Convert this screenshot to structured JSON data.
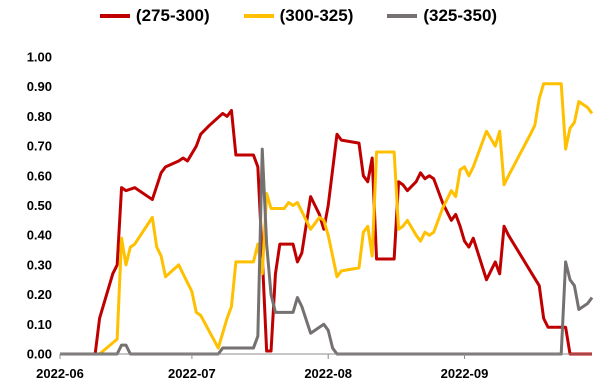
{
  "chart_data": {
    "type": "line",
    "title": "",
    "xlabel": "",
    "ylabel": "",
    "ylim": [
      0,
      1
    ],
    "xlim": [
      "2022-06-01",
      "2022-09-30"
    ],
    "y_ticks": [
      "0.00",
      "0.10",
      "0.20",
      "0.30",
      "0.40",
      "0.50",
      "0.60",
      "0.70",
      "0.80",
      "0.90",
      "1.00"
    ],
    "x_ticks": [
      {
        "date": "2022-06-01",
        "label": "2022-06"
      },
      {
        "date": "2022-07-01",
        "label": "2022-07"
      },
      {
        "date": "2022-08-01",
        "label": "2022-08"
      },
      {
        "date": "2022-09-01",
        "label": "2022-09"
      }
    ],
    "legend_position": "top",
    "grid": false,
    "series": [
      {
        "name": "(275-300)",
        "color": "#C00000",
        "points": [
          [
            "2022-06-01",
            0.0
          ],
          [
            "2022-06-09",
            0.0
          ],
          [
            "2022-06-10",
            0.12
          ],
          [
            "2022-06-13",
            0.27
          ],
          [
            "2022-06-14",
            0.3
          ],
          [
            "2022-06-15",
            0.56
          ],
          [
            "2022-06-16",
            0.55
          ],
          [
            "2022-06-18",
            0.56
          ],
          [
            "2022-06-22",
            0.52
          ],
          [
            "2022-06-24",
            0.61
          ],
          [
            "2022-06-25",
            0.63
          ],
          [
            "2022-06-28",
            0.65
          ],
          [
            "2022-06-29",
            0.66
          ],
          [
            "2022-06-30",
            0.65
          ],
          [
            "2022-07-02",
            0.7
          ],
          [
            "2022-07-03",
            0.74
          ],
          [
            "2022-07-05",
            0.77
          ],
          [
            "2022-07-08",
            0.81
          ],
          [
            "2022-07-09",
            0.8
          ],
          [
            "2022-07-10",
            0.82
          ],
          [
            "2022-07-11",
            0.67
          ],
          [
            "2022-07-15",
            0.67
          ],
          [
            "2022-07-16",
            0.63
          ],
          [
            "2022-07-17",
            0.33
          ],
          [
            "2022-07-18",
            0.01
          ],
          [
            "2022-07-19",
            0.01
          ],
          [
            "2022-07-20",
            0.27
          ],
          [
            "2022-07-21",
            0.37
          ],
          [
            "2022-07-24",
            0.37
          ],
          [
            "2022-07-25",
            0.31
          ],
          [
            "2022-07-26",
            0.34
          ],
          [
            "2022-07-28",
            0.53
          ],
          [
            "2022-07-29",
            0.5
          ],
          [
            "2022-07-30",
            0.47
          ],
          [
            "2022-07-31",
            0.42
          ],
          [
            "2022-08-01",
            0.5
          ],
          [
            "2022-08-03",
            0.74
          ],
          [
            "2022-08-04",
            0.72
          ],
          [
            "2022-08-08",
            0.71
          ],
          [
            "2022-08-09",
            0.6
          ],
          [
            "2022-08-10",
            0.58
          ],
          [
            "2022-08-11",
            0.66
          ],
          [
            "2022-08-12",
            0.32
          ],
          [
            "2022-08-16",
            0.32
          ],
          [
            "2022-08-17",
            0.58
          ],
          [
            "2022-08-18",
            0.57
          ],
          [
            "2022-08-19",
            0.55
          ],
          [
            "2022-08-21",
            0.58
          ],
          [
            "2022-08-22",
            0.61
          ],
          [
            "2022-08-23",
            0.59
          ],
          [
            "2022-08-24",
            0.6
          ],
          [
            "2022-08-25",
            0.59
          ],
          [
            "2022-08-27",
            0.51
          ],
          [
            "2022-08-28",
            0.48
          ],
          [
            "2022-08-29",
            0.45
          ],
          [
            "2022-08-30",
            0.47
          ],
          [
            "2022-08-31",
            0.43
          ],
          [
            "2022-09-01",
            0.38
          ],
          [
            "2022-09-02",
            0.36
          ],
          [
            "2022-09-03",
            0.39
          ],
          [
            "2022-09-06",
            0.25
          ],
          [
            "2022-09-08",
            0.31
          ],
          [
            "2022-09-09",
            0.27
          ],
          [
            "2022-09-10",
            0.43
          ],
          [
            "2022-09-11",
            0.4
          ],
          [
            "2022-09-18",
            0.23
          ],
          [
            "2022-09-19",
            0.12
          ],
          [
            "2022-09-20",
            0.09
          ],
          [
            "2022-09-24",
            0.09
          ],
          [
            "2022-09-25",
            0.0
          ],
          [
            "2022-09-30",
            0.0
          ]
        ]
      },
      {
        "name": "(300-325)",
        "color": "#FFC000",
        "points": [
          [
            "2022-06-01",
            0.0
          ],
          [
            "2022-06-10",
            0.0
          ],
          [
            "2022-06-14",
            0.05
          ],
          [
            "2022-06-15",
            0.39
          ],
          [
            "2022-06-16",
            0.3
          ],
          [
            "2022-06-17",
            0.36
          ],
          [
            "2022-06-18",
            0.37
          ],
          [
            "2022-06-22",
            0.46
          ],
          [
            "2022-06-23",
            0.36
          ],
          [
            "2022-06-24",
            0.33
          ],
          [
            "2022-06-25",
            0.26
          ],
          [
            "2022-06-28",
            0.3
          ],
          [
            "2022-06-30",
            0.24
          ],
          [
            "2022-07-01",
            0.21
          ],
          [
            "2022-07-02",
            0.14
          ],
          [
            "2022-07-03",
            0.13
          ],
          [
            "2022-07-07",
            0.02
          ],
          [
            "2022-07-09",
            0.12
          ],
          [
            "2022-07-10",
            0.16
          ],
          [
            "2022-07-11",
            0.31
          ],
          [
            "2022-07-15",
            0.31
          ],
          [
            "2022-07-16",
            0.37
          ],
          [
            "2022-07-17",
            0.27
          ],
          [
            "2022-07-18",
            0.54
          ],
          [
            "2022-07-19",
            0.49
          ],
          [
            "2022-07-20",
            0.49
          ],
          [
            "2022-07-22",
            0.49
          ],
          [
            "2022-07-23",
            0.51
          ],
          [
            "2022-07-24",
            0.5
          ],
          [
            "2022-07-25",
            0.51
          ],
          [
            "2022-07-28",
            0.42
          ],
          [
            "2022-07-29",
            0.44
          ],
          [
            "2022-07-30",
            0.46
          ],
          [
            "2022-07-31",
            0.45
          ],
          [
            "2022-08-01",
            0.4
          ],
          [
            "2022-08-03",
            0.26
          ],
          [
            "2022-08-04",
            0.28
          ],
          [
            "2022-08-08",
            0.29
          ],
          [
            "2022-08-09",
            0.41
          ],
          [
            "2022-08-10",
            0.43
          ],
          [
            "2022-08-11",
            0.33
          ],
          [
            "2022-08-12",
            0.68
          ],
          [
            "2022-08-16",
            0.68
          ],
          [
            "2022-08-17",
            0.42
          ],
          [
            "2022-08-18",
            0.43
          ],
          [
            "2022-08-19",
            0.45
          ],
          [
            "2022-08-21",
            0.4
          ],
          [
            "2022-08-22",
            0.38
          ],
          [
            "2022-08-23",
            0.41
          ],
          [
            "2022-08-24",
            0.4
          ],
          [
            "2022-08-25",
            0.41
          ],
          [
            "2022-08-27",
            0.49
          ],
          [
            "2022-08-28",
            0.52
          ],
          [
            "2022-08-29",
            0.55
          ],
          [
            "2022-08-30",
            0.53
          ],
          [
            "2022-08-31",
            0.62
          ],
          [
            "2022-09-01",
            0.63
          ],
          [
            "2022-09-02",
            0.6
          ],
          [
            "2022-09-03",
            0.63
          ],
          [
            "2022-09-06",
            0.75
          ],
          [
            "2022-09-08",
            0.7
          ],
          [
            "2022-09-09",
            0.75
          ],
          [
            "2022-09-10",
            0.57
          ],
          [
            "2022-09-11",
            0.6
          ],
          [
            "2022-09-16",
            0.74
          ],
          [
            "2022-09-17",
            0.77
          ],
          [
            "2022-09-18",
            0.86
          ],
          [
            "2022-09-19",
            0.91
          ],
          [
            "2022-09-23",
            0.91
          ],
          [
            "2022-09-24",
            0.69
          ],
          [
            "2022-09-25",
            0.76
          ],
          [
            "2022-09-26",
            0.78
          ],
          [
            "2022-09-27",
            0.85
          ],
          [
            "2022-09-29",
            0.83
          ],
          [
            "2022-09-30",
            0.81
          ]
        ]
      },
      {
        "name": "(325-350)",
        "color": "#767171",
        "points": [
          [
            "2022-06-01",
            0.0
          ],
          [
            "2022-06-14",
            0.0
          ],
          [
            "2022-06-15",
            0.03
          ],
          [
            "2022-06-16",
            0.03
          ],
          [
            "2022-06-17",
            0.0
          ],
          [
            "2022-07-07",
            0.0
          ],
          [
            "2022-07-08",
            0.02
          ],
          [
            "2022-07-15",
            0.02
          ],
          [
            "2022-07-16",
            0.06
          ],
          [
            "2022-07-17",
            0.69
          ],
          [
            "2022-07-18",
            0.37
          ],
          [
            "2022-07-19",
            0.2
          ],
          [
            "2022-07-20",
            0.14
          ],
          [
            "2022-07-24",
            0.14
          ],
          [
            "2022-07-25",
            0.19
          ],
          [
            "2022-07-26",
            0.16
          ],
          [
            "2022-07-28",
            0.07
          ],
          [
            "2022-07-29",
            0.08
          ],
          [
            "2022-07-31",
            0.1
          ],
          [
            "2022-08-01",
            0.08
          ],
          [
            "2022-08-02",
            0.02
          ],
          [
            "2022-08-03",
            0.0
          ],
          [
            "2022-09-23",
            0.0
          ],
          [
            "2022-09-24",
            0.31
          ],
          [
            "2022-09-25",
            0.25
          ],
          [
            "2022-09-26",
            0.23
          ],
          [
            "2022-09-27",
            0.15
          ],
          [
            "2022-09-29",
            0.17
          ],
          [
            "2022-09-30",
            0.19
          ]
        ]
      }
    ]
  }
}
